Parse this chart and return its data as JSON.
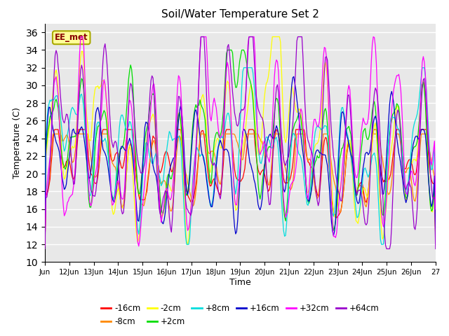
{
  "title": "Soil/Water Temperature Set 2",
  "xlabel": "Time",
  "ylabel": "Temperature (C)",
  "ylim": [
    10,
    37
  ],
  "yticks": [
    10,
    12,
    14,
    16,
    18,
    20,
    22,
    24,
    26,
    28,
    30,
    32,
    34,
    36
  ],
  "xstart": 11,
  "xend": 27,
  "xtick_labels": [
    "Jun",
    "12Jun",
    "13Jun",
    "14Jun",
    "15Jun",
    "16Jun",
    "17Jun",
    "18Jun",
    "19Jun",
    "20Jun",
    "21Jun",
    "22Jun",
    "23Jun",
    "24Jun",
    "25Jun",
    "26Jun",
    "27"
  ],
  "series_colors": {
    "-16cm": "#ff0000",
    "-8cm": "#ff8800",
    "-2cm": "#ffff00",
    "+2cm": "#00dd00",
    "+8cm": "#00dddd",
    "+16cm": "#0000cc",
    "+32cm": "#ff00ff",
    "+64cm": "#9900cc"
  },
  "legend_label": "EE_met",
  "legend_box_color": "#ffff99",
  "legend_box_edge": "#aaaa00",
  "legend_text_color": "#880000",
  "axes_background": "#e8e8e8",
  "fig_background": "#ffffff",
  "n_points": 384
}
